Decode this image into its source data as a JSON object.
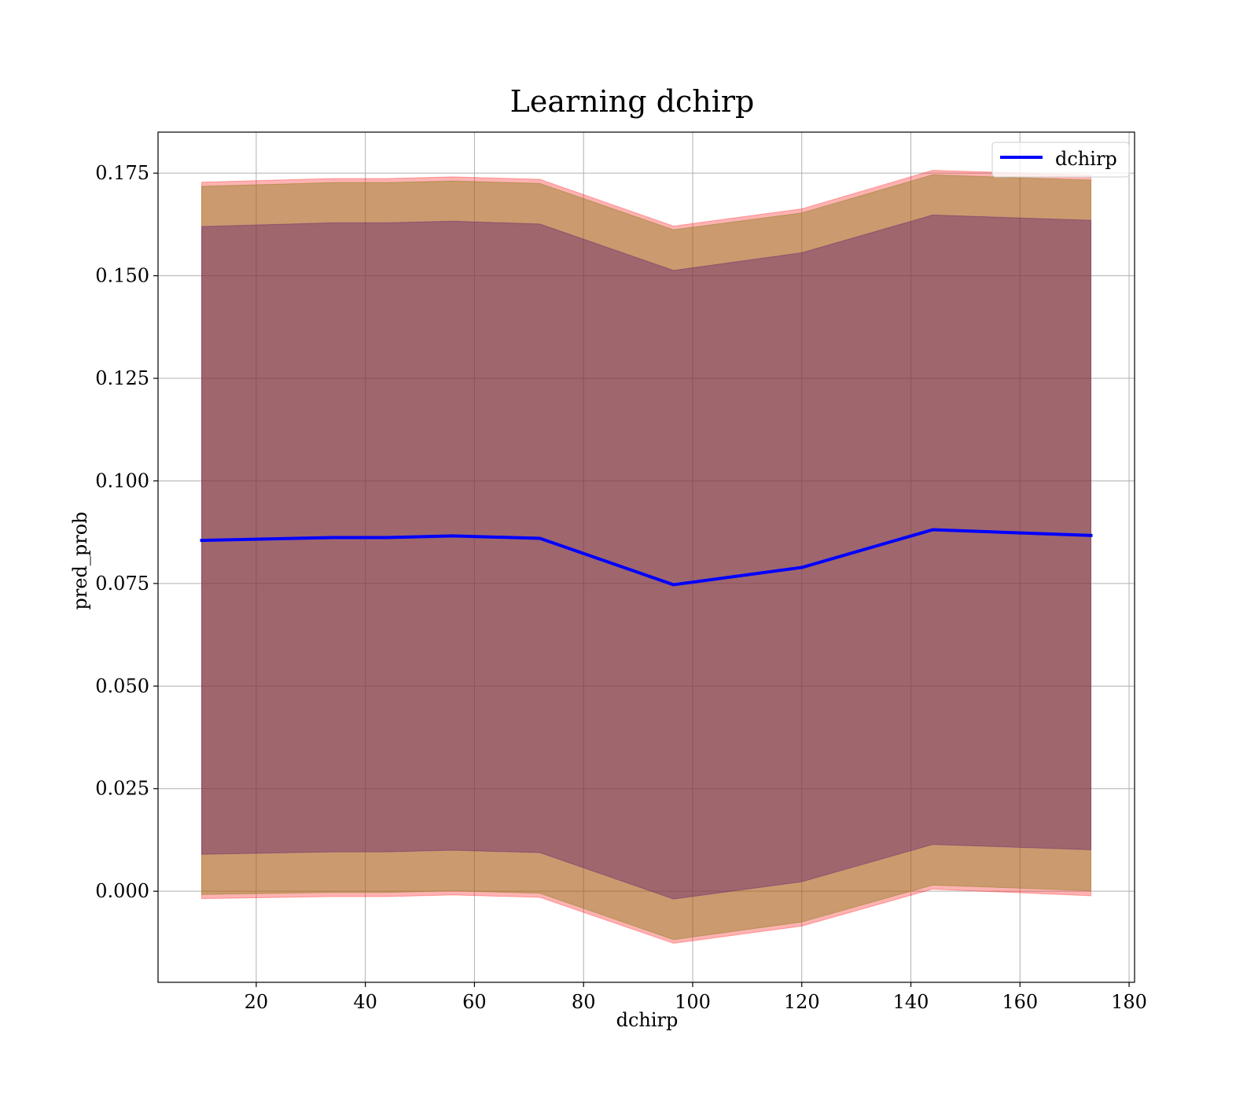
{
  "chart_data": {
    "type": "line",
    "title": "Learning dchirp",
    "xlabel": "dchirp",
    "ylabel": "pred_prob",
    "xlim": [
      2,
      181
    ],
    "ylim": [
      -0.0222,
      0.185
    ],
    "x_ticks": [
      20,
      40,
      60,
      80,
      100,
      120,
      140,
      160,
      180
    ],
    "y_ticks": [
      0.0,
      0.025,
      0.05,
      0.075,
      0.1,
      0.125,
      0.15,
      0.175
    ],
    "x_tick_labels": [
      "20",
      "40",
      "60",
      "80",
      "100",
      "120",
      "140",
      "160",
      "180"
    ],
    "y_tick_labels": [
      "0.000",
      "0.025",
      "0.050",
      "0.075",
      "0.100",
      "0.125",
      "0.150",
      "0.175"
    ],
    "grid": true,
    "legend_position": "top-right",
    "x": [
      10,
      34,
      44,
      56,
      72,
      96.5,
      120,
      144,
      173
    ],
    "series": [
      {
        "name": "dchirp",
        "color": "#0000ff",
        "values": [
          0.0855,
          0.0862,
          0.0862,
          0.0866,
          0.086,
          0.0747,
          0.0789,
          0.0881,
          0.0867
        ]
      }
    ],
    "bands": [
      {
        "color": "#ff0000",
        "opacity": 0.3,
        "upper": [
          0.1728,
          0.1737,
          0.1737,
          0.1741,
          0.1735,
          0.1621,
          0.1663,
          0.1757,
          0.1745
        ],
        "lower": [
          -0.0018,
          -0.0013,
          -0.0013,
          -0.0009,
          -0.0015,
          -0.0127,
          -0.0085,
          0.0005,
          -0.0011
        ]
      },
      {
        "color": "#8c7c1a",
        "opacity": 0.45,
        "upper": [
          0.1718,
          0.1727,
          0.1727,
          0.1731,
          0.1725,
          0.1612,
          0.1653,
          0.1746,
          0.1733
        ],
        "lower": [
          -0.0008,
          -0.0003,
          -0.0003,
          0.0001,
          -0.0005,
          -0.0118,
          -0.0075,
          0.0015,
          0.0001
        ]
      },
      {
        "color": "#5c1a6e",
        "opacity": 0.4,
        "upper": [
          0.162,
          0.1629,
          0.1629,
          0.1633,
          0.1626,
          0.1513,
          0.1556,
          0.1648,
          0.1635
        ],
        "lower": [
          0.009,
          0.0096,
          0.0096,
          0.01,
          0.0094,
          -0.0019,
          0.0023,
          0.0114,
          0.0101
        ]
      }
    ]
  }
}
